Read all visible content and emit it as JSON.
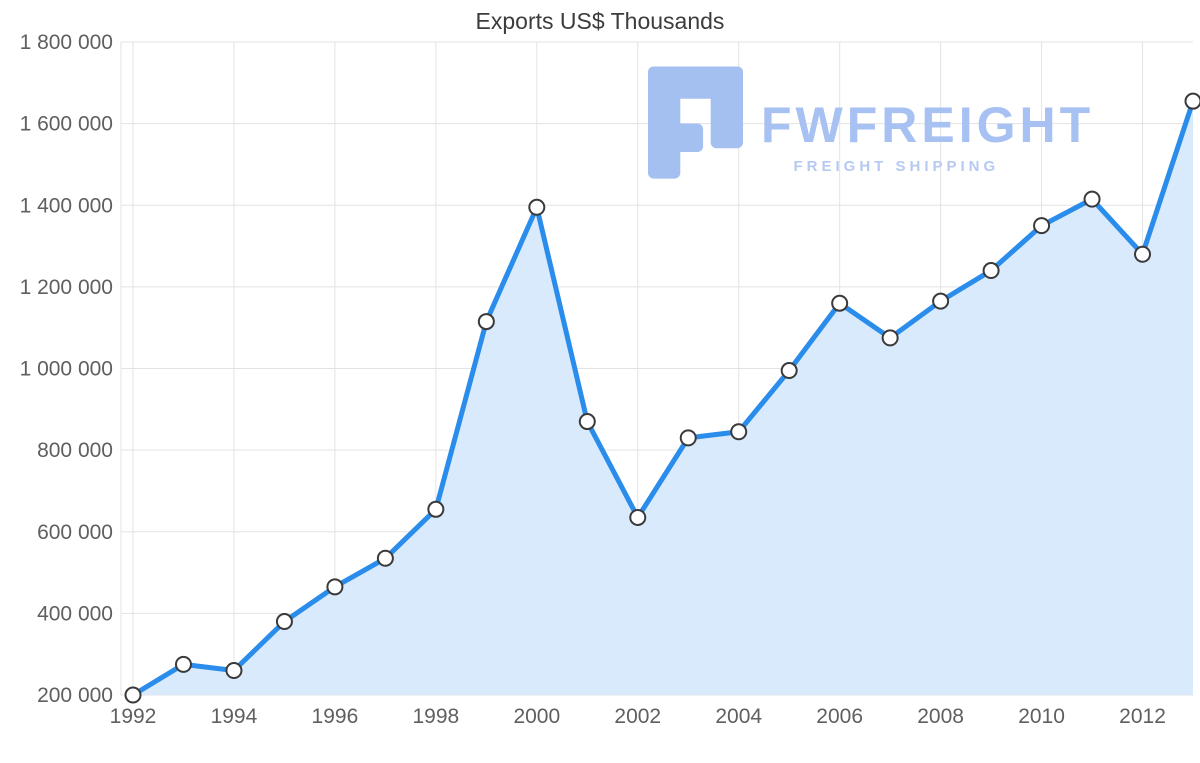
{
  "page": {
    "background": "#ffffff"
  },
  "chart_data": {
    "type": "area",
    "title": "Exports US$ Thousands",
    "x": [
      1992,
      1993,
      1994,
      1995,
      1996,
      1997,
      1998,
      1999,
      2000,
      2001,
      2002,
      2003,
      2004,
      2005,
      2006,
      2007,
      2008,
      2009,
      2010,
      2011,
      2012,
      2013
    ],
    "values": [
      200000,
      275000,
      260000,
      380000,
      465000,
      535000,
      655000,
      1115000,
      1395000,
      870000,
      635000,
      830000,
      845000,
      995000,
      1160000,
      1075000,
      1165000,
      1240000,
      1350000,
      1415000,
      1280000,
      1655000
    ],
    "ylim": [
      200000,
      1800000
    ],
    "y_tick_step": 200000,
    "y_tick_labels": [
      "200 000",
      "400 000",
      "600 000",
      "800 000",
      "1 000 000",
      "1 200 000",
      "1 400 000",
      "1 600 000",
      "1 800 000"
    ],
    "x_tick_labels": [
      "1992",
      "1994",
      "1996",
      "1998",
      "2000",
      "2002",
      "2004",
      "2006",
      "2008",
      "2010",
      "2012"
    ],
    "grid": true,
    "legend": "none",
    "colors": {
      "line": "#2a8ceb",
      "area": "#d9eafc",
      "marker_fill": "#ffffff",
      "marker_stroke": "#3a3a3a",
      "grid": "#e3e3e3",
      "tick_label": "#5f5f5f",
      "title": "#3c3c3c"
    }
  },
  "watermark": {
    "brand": "FWFREIGHT",
    "tagline": "FREIGHT SHIPPING",
    "brand_color": "#a6c1f2",
    "tagline_color": "#b6c9f3",
    "logo_color": "#a3c0f0"
  }
}
